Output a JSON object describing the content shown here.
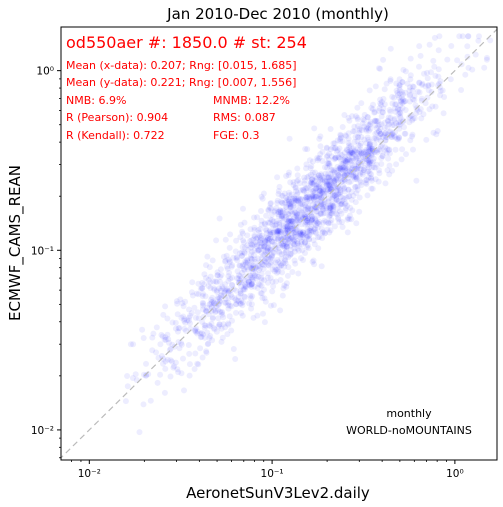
{
  "chart_data": {
    "type": "scatter",
    "title": "Jan 2010-Dec 2010 (monthly)",
    "xlabel": "AeronetSunV3Lev2.daily",
    "ylabel": "ECMWF_CAMS_REAN",
    "xscale": "log",
    "yscale": "log",
    "xlim": [
      0.007,
      1.7
    ],
    "ylim": [
      0.0068,
      1.75
    ],
    "x_ticks": [
      0.01,
      0.1,
      1.0
    ],
    "x_tick_labels": [
      "10⁻²",
      "10⁻¹",
      "10⁰"
    ],
    "y_ticks": [
      0.01,
      0.1,
      1.0
    ],
    "y_tick_labels": [
      "10⁻²",
      "10⁻¹",
      "10⁰"
    ],
    "grid": false,
    "point_color": "#0000ff",
    "point_opacity": 0.07,
    "reference_line": "1:1 dashed",
    "stats_color": "#ff0000",
    "n_points": 1850,
    "n_stations": 254,
    "mean_x": 0.207,
    "range_x": [
      0.015,
      1.685
    ],
    "mean_y": 0.221,
    "range_y": [
      0.007,
      1.556
    ],
    "nmb_percent": 6.9,
    "mnmb_percent": 12.2,
    "r_pearson": 0.904,
    "rms": 0.087,
    "r_kendall": 0.722,
    "fge": 0.3,
    "annotations": {
      "header": "od550aer #: 1850.0 # st: 254",
      "mean_x": "Mean (x-data): 0.207; Rng: [0.015, 1.685]",
      "mean_y": "Mean (y-data): 0.221; Rng: [0.007, 1.556]",
      "nmb": "NMB: 6.9%",
      "mnmb": "MNMB: 12.2%",
      "pearson": "R (Pearson): 0.904",
      "rms": "RMS: 0.087",
      "kendall": "R (Kendall): 0.722",
      "fge": "FGE: 0.3",
      "freq": "monthly",
      "region": "WORLD-noMOUNTAINS"
    }
  }
}
